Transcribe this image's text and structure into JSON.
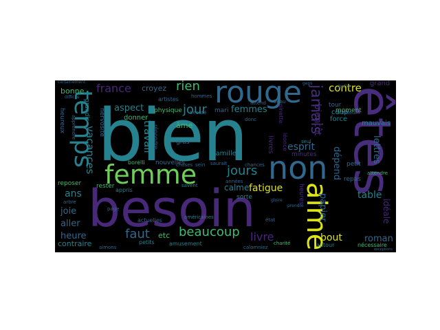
{
  "wordcloud": {
    "palette": {
      "background": "#000000",
      "teal": "#26828e",
      "green": "#3fbc73",
      "yellow": "#dde318",
      "purple": "#472d7b",
      "violet": "#482878",
      "indigo": "#31688e",
      "lime": "#6ece58",
      "deep": "#440154"
    },
    "words": [
      {
        "text": "bien"
      },
      {
        "text": "besoin"
      },
      {
        "text": "êtes"
      },
      {
        "text": "rouge"
      },
      {
        "text": "temps"
      },
      {
        "text": "femme"
      },
      {
        "text": "non"
      },
      {
        "text": "aime"
      },
      {
        "text": "jamais"
      },
      {
        "text": "beaucoup"
      },
      {
        "text": "jours"
      },
      {
        "text": "jour"
      },
      {
        "text": "rien"
      },
      {
        "text": "femmes"
      },
      {
        "text": "france"
      },
      {
        "text": "vacances"
      },
      {
        "text": "travail"
      },
      {
        "text": "faut"
      },
      {
        "text": "fatigue"
      },
      {
        "text": "livre"
      },
      {
        "text": "esprit"
      },
      {
        "text": "contre"
      },
      {
        "text": "bientôt"
      },
      {
        "text": "dépend"
      },
      {
        "text": "papier"
      },
      {
        "text": "table"
      },
      {
        "text": "roman"
      },
      {
        "text": "bout"
      },
      {
        "text": "lettres"
      },
      {
        "text": "heure"
      },
      {
        "text": "joie"
      },
      {
        "text": "aller"
      },
      {
        "text": "ans"
      },
      {
        "text": "calme"
      },
      {
        "text": "aspect"
      },
      {
        "text": "bonne"
      },
      {
        "text": "croyez"
      },
      {
        "text": "donner"
      },
      {
        "text": "âme"
      },
      {
        "text": "grand"
      },
      {
        "text": "mauvais"
      },
      {
        "text": "idéale"
      },
      {
        "text": "contraire"
      },
      {
        "text": "etc"
      },
      {
        "text": "nouvelles"
      },
      {
        "text": "famille"
      },
      {
        "text": "livres"
      },
      {
        "text": "force"
      },
      {
        "text": "coup"
      },
      {
        "text": "tour"
      },
      {
        "text": "moment"
      },
      {
        "text": "minutes"
      },
      {
        "text": "heures"
      },
      {
        "text": "physique"
      },
      {
        "text": "mari"
      },
      {
        "text": "gras"
      },
      {
        "text": "sorte"
      },
      {
        "text": "repas"
      },
      {
        "text": "petit"
      },
      {
        "text": "reposer"
      },
      {
        "text": "rester"
      },
      {
        "text": "appris"
      },
      {
        "text": "petits"
      },
      {
        "text": "actuelles"
      },
      {
        "text": "amusement"
      },
      {
        "text": "autour"
      },
      {
        "text": "nécessaire"
      },
      {
        "text": "charité"
      },
      {
        "text": "calomniez"
      },
      {
        "text": "heureux"
      },
      {
        "text": "grandis"
      },
      {
        "text": "nervosité"
      },
      {
        "text": "artistes"
      },
      {
        "text": "répondre"
      },
      {
        "text": "borelli"
      },
      {
        "text": "saurait"
      },
      {
        "text": "léonce"
      },
      {
        "text": "ginette"
      },
      {
        "text": "seul"
      },
      {
        "text": "années"
      },
      {
        "text": "état"
      },
      {
        "text": "sein"
      },
      {
        "text": "chances"
      },
      {
        "text": "attendre"
      },
      {
        "text": "beauté"
      },
      {
        "text": "bonheur"
      },
      {
        "text": "belle"
      },
      {
        "text": "choses"
      },
      {
        "text": "savent"
      },
      {
        "text": "hommes"
      },
      {
        "text": "arbre"
      },
      {
        "text": "page"
      },
      {
        "text": "aimons"
      },
      {
        "text": "apprendre"
      },
      {
        "text": "certainement"
      },
      {
        "text": "difficile"
      },
      {
        "text": "américaines"
      },
      {
        "text": "exceptions"
      },
      {
        "text": "donc"
      },
      {
        "text": "beau"
      },
      {
        "text": "attend"
      },
      {
        "text": "gens"
      },
      {
        "text": "prendre"
      },
      {
        "text": "gloire"
      }
    ]
  }
}
